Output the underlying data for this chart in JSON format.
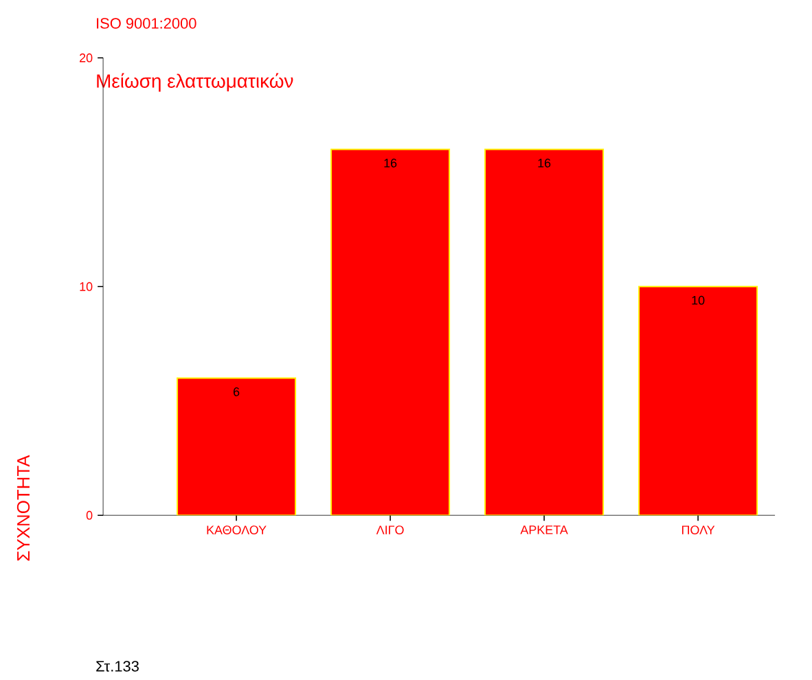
{
  "chart_data": {
    "type": "bar",
    "title": "ISO 9001:2000",
    "subtitle": "Μείωση ελαττωματικών",
    "ylabel": "ΣΥΧΝΟΤΗΤΑ",
    "categories": [
      "ΚΑΘΟΛΟΥ",
      "ΛΙΓΟ",
      "ΑΡΚΕΤΑ",
      "ΠΟΛΥ"
    ],
    "values": [
      6,
      16,
      16,
      10
    ],
    "color": "#ff0000",
    "ylim": [
      0,
      20
    ],
    "yticks": [
      0,
      10,
      20
    ],
    "data_labels": true,
    "grid": false,
    "annotations": [
      "Στ.133"
    ]
  }
}
